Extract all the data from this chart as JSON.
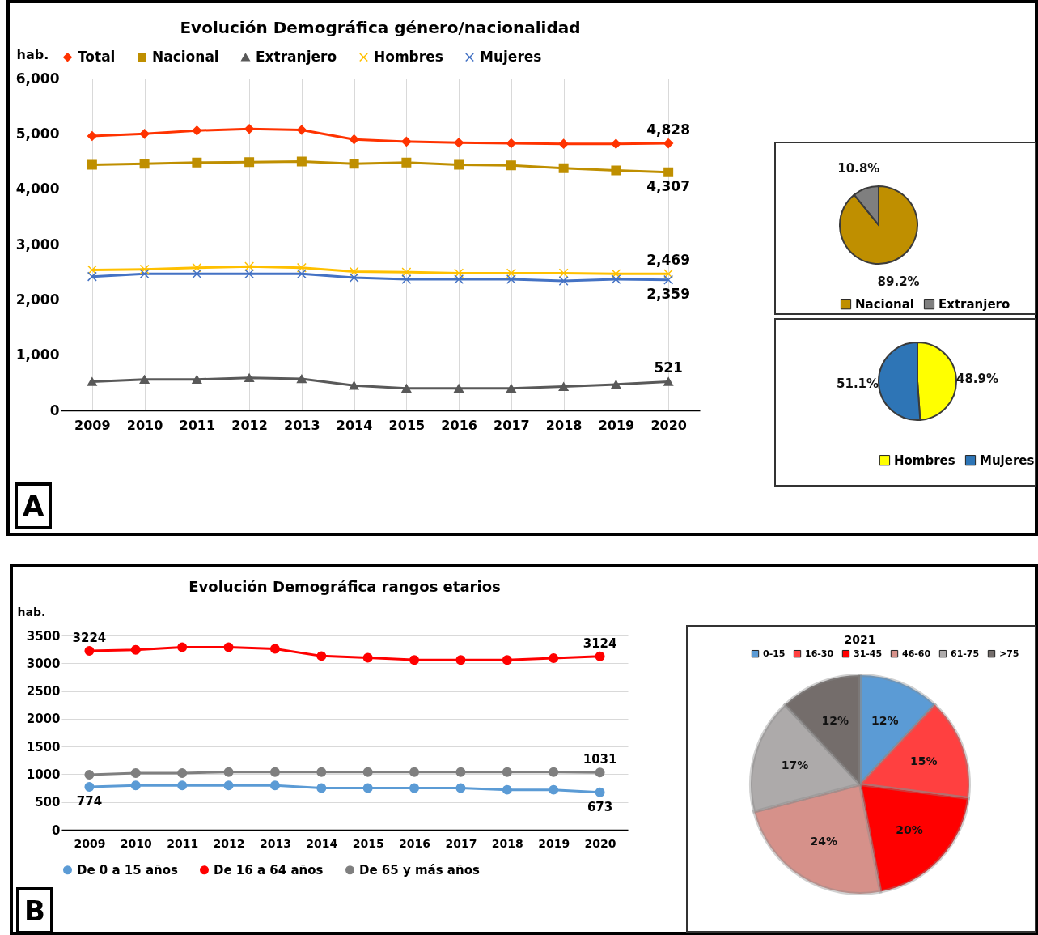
{
  "chart_data": [
    {
      "type": "line",
      "title": "Evolución Demográfica género/nacionalidad",
      "ylabel": "hab.",
      "categories": [
        "2009",
        "2010",
        "2011",
        "2012",
        "2013",
        "2014",
        "2015",
        "2016",
        "2017",
        "2018",
        "2019",
        "2020"
      ],
      "series": [
        {
          "name": "Total",
          "color": "#ff3300",
          "marker": "diamond",
          "values": [
            4960,
            5000,
            5060,
            5090,
            5070,
            4900,
            4860,
            4840,
            4830,
            4820,
            4820,
            4828
          ],
          "value_labels": [
            null,
            null,
            null,
            null,
            null,
            null,
            null,
            null,
            null,
            null,
            null,
            "4,828"
          ]
        },
        {
          "name": "Nacional",
          "color": "#bf8f00",
          "marker": "square",
          "values": [
            4440,
            4460,
            4480,
            4490,
            4500,
            4460,
            4480,
            4440,
            4430,
            4380,
            4340,
            4307
          ],
          "value_labels": [
            null,
            null,
            null,
            null,
            null,
            null,
            null,
            null,
            null,
            null,
            null,
            "4,307"
          ]
        },
        {
          "name": "Extranjero",
          "color": "#595959",
          "marker": "triangle",
          "values": [
            520,
            560,
            560,
            590,
            570,
            450,
            400,
            400,
            400,
            430,
            470,
            521
          ],
          "value_labels": [
            null,
            null,
            null,
            null,
            null,
            null,
            null,
            null,
            null,
            null,
            null,
            "521"
          ]
        },
        {
          "name": "Hombres",
          "color": "#ffc000",
          "marker": "cross",
          "values": [
            2540,
            2550,
            2580,
            2600,
            2580,
            2510,
            2500,
            2480,
            2480,
            2480,
            2470,
            2469
          ],
          "value_labels": [
            null,
            null,
            null,
            null,
            null,
            null,
            null,
            null,
            null,
            null,
            null,
            "2,469"
          ]
        },
        {
          "name": "Mujeres",
          "color": "#4472c4",
          "marker": "cross",
          "values": [
            2420,
            2470,
            2470,
            2470,
            2470,
            2400,
            2370,
            2370,
            2370,
            2340,
            2370,
            2359
          ],
          "value_labels": [
            null,
            null,
            null,
            null,
            null,
            null,
            null,
            null,
            null,
            null,
            null,
            "2,359"
          ]
        }
      ],
      "ylim": [
        0,
        6000
      ],
      "yticks": [
        0,
        {
          "value": 1000,
          "label": "1,000"
        },
        {
          "value": 2000,
          "label": "2,000"
        },
        {
          "value": 3000,
          "label": "3,000"
        },
        {
          "value": 4000,
          "label": "4,000"
        },
        {
          "value": 5000,
          "label": "5,000"
        },
        {
          "value": 6000,
          "label": "6,000"
        }
      ],
      "grid": "x",
      "legend": "top",
      "annotations": [
        "A"
      ]
    },
    {
      "type": "pie",
      "categories": [
        "Nacional",
        "Extranjero"
      ],
      "values": [
        89.2,
        10.8
      ],
      "colors": [
        "#bf8f00",
        "#7f7f7f"
      ],
      "value_labels": [
        "89.2%",
        "10.8%"
      ],
      "legend": "bottom"
    },
    {
      "type": "pie",
      "categories": [
        "Hombres",
        "Mujeres"
      ],
      "values": [
        48.9,
        51.1
      ],
      "colors": [
        "#ffff00",
        "#2e75b6"
      ],
      "value_labels": [
        "48.9%",
        "51.1%"
      ],
      "legend": "bottom"
    },
    {
      "type": "line",
      "title": "Evolución Demográfica rangos etarios",
      "ylabel": "hab.",
      "categories": [
        "2009",
        "2010",
        "2011",
        "2012",
        "2013",
        "2014",
        "2015",
        "2016",
        "2017",
        "2018",
        "2019",
        "2020"
      ],
      "marker": "circle",
      "series": [
        {
          "name": "De 0 a 15 años",
          "color": "#5b9bd5",
          "values": [
            774,
            800,
            800,
            800,
            800,
            750,
            750,
            750,
            750,
            720,
            720,
            673
          ],
          "value_labels": [
            "774",
            null,
            null,
            null,
            null,
            null,
            null,
            null,
            null,
            null,
            null,
            "673"
          ]
        },
        {
          "name": "De 16 a 64 años",
          "color": "#ff0000",
          "values": [
            3224,
            3240,
            3290,
            3290,
            3260,
            3130,
            3100,
            3060,
            3060,
            3060,
            3090,
            3124
          ],
          "value_labels": [
            "3224",
            null,
            null,
            null,
            null,
            null,
            null,
            null,
            null,
            null,
            null,
            "3124"
          ]
        },
        {
          "name": "De 65 y más años",
          "color": "#7f7f7f",
          "values": [
            990,
            1020,
            1020,
            1040,
            1040,
            1040,
            1040,
            1040,
            1040,
            1040,
            1040,
            1031
          ],
          "value_labels": [
            null,
            null,
            null,
            null,
            null,
            null,
            null,
            null,
            null,
            null,
            null,
            "1031"
          ]
        }
      ],
      "ylim": [
        0,
        3500
      ],
      "yticks": [
        0,
        500,
        1000,
        1500,
        2000,
        2500,
        3000,
        3500
      ],
      "grid": "y",
      "legend": "bottom",
      "annotations": [
        "B"
      ]
    },
    {
      "type": "pie",
      "title": "2021",
      "categories": [
        "0-15",
        "16-30",
        "31-45",
        "46-60",
        "61-75",
        ">75"
      ],
      "values": [
        12,
        15,
        20,
        24,
        17,
        12
      ],
      "colors": [
        "#5b9bd5",
        "#ff4040",
        "#ff0000",
        "#d6918a",
        "#adaaaa",
        "#746d6b"
      ],
      "value_labels": [
        "12%",
        "15%",
        "20%",
        "24%",
        "17%",
        "12%"
      ],
      "legend": "top"
    }
  ]
}
